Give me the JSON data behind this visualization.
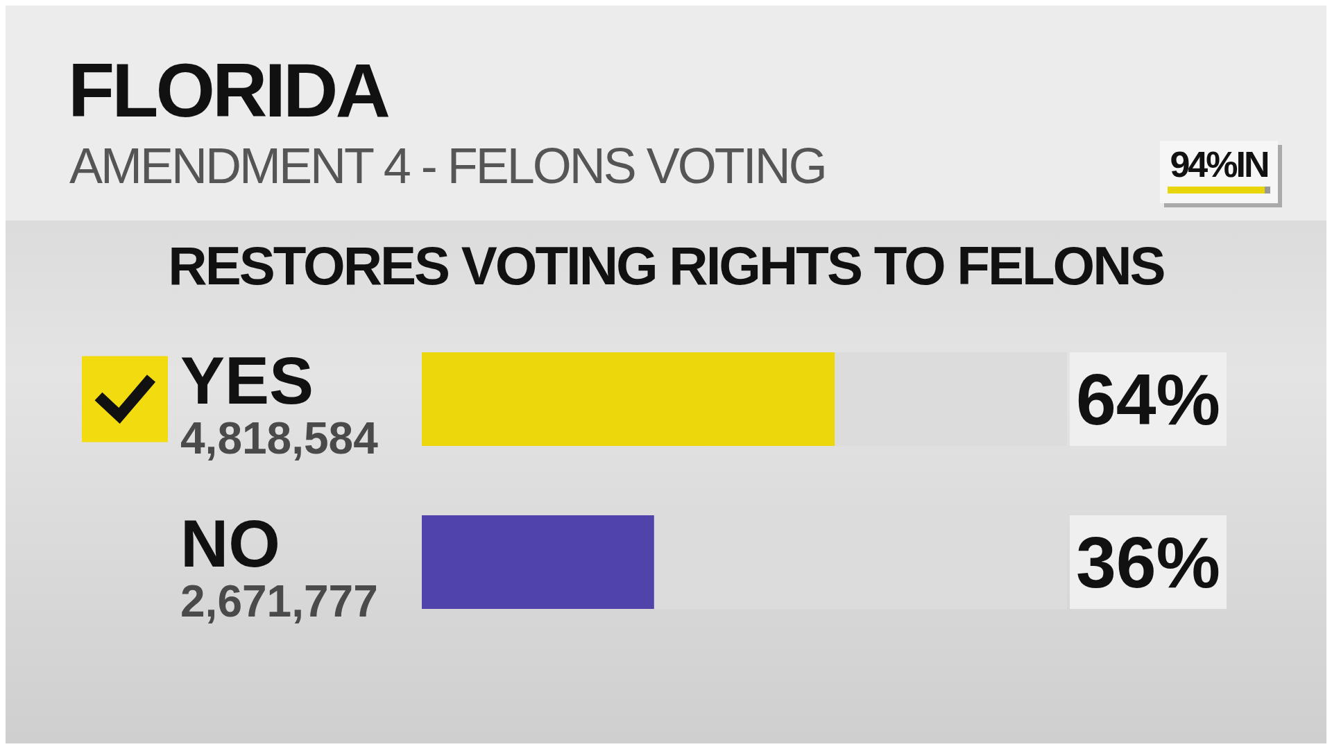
{
  "chart_data": {
    "type": "bar",
    "orientation": "horizontal",
    "title": "FLORIDA",
    "subtitle": "AMENDMENT 4 - FELONS VOTING",
    "categories": [
      "YES",
      "NO"
    ],
    "values": [
      64,
      36
    ],
    "colors": [
      "#ecd60c",
      "#5044aa"
    ],
    "value_labels": [
      "64%",
      "36%"
    ],
    "xlim": [
      0,
      100
    ],
    "tick_labels": "y",
    "annotations": [
      "RESTORES VOTING RIGHTS TO FELONS",
      "94%IN",
      "4,818,584",
      "2,671,777"
    ]
  }
}
